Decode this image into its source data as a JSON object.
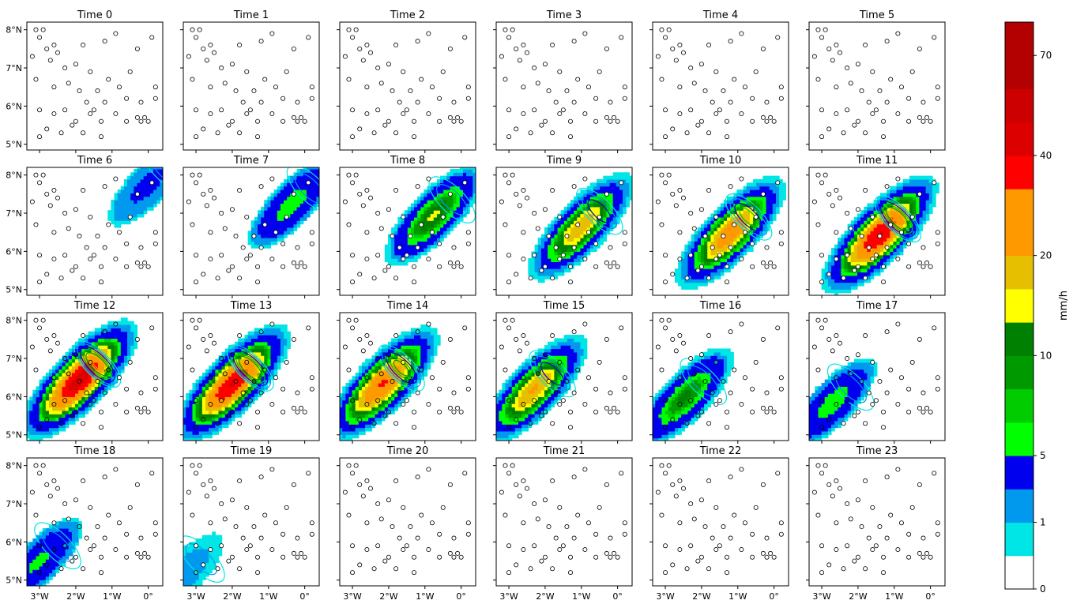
{
  "chart_data": {
    "type": "heatmap",
    "title": "",
    "panel_titles": [
      "Time 0",
      "Time 1",
      "Time 2",
      "Time 3",
      "Time 4",
      "Time 5",
      "Time 6",
      "Time 7",
      "Time 8",
      "Time 9",
      "Time 10",
      "Time 11",
      "Time 12",
      "Time 13",
      "Time 14",
      "Time 15",
      "Time 16",
      "Time 17",
      "Time 18",
      "Time 19",
      "Time 20",
      "Time 21",
      "Time 22",
      "Time 23"
    ],
    "xlim": [
      -3.35,
      0.4
    ],
    "ylim": [
      4.85,
      8.2
    ],
    "x_ticks": [
      {
        "value": -3,
        "label": "3°W"
      },
      {
        "value": -2,
        "label": "2°W"
      },
      {
        "value": -1,
        "label": "1°W"
      },
      {
        "value": 0,
        "label": "0°"
      }
    ],
    "y_ticks": [
      {
        "value": 5,
        "label": "5°N"
      },
      {
        "value": 6,
        "label": "6°N"
      },
      {
        "value": 7,
        "label": "7°N"
      },
      {
        "value": 8,
        "label": "8°N"
      }
    ],
    "colorbar": {
      "label": "mm/h",
      "bounds": [
        0,
        0.5,
        1,
        2,
        5,
        7,
        8,
        10,
        12,
        15,
        20,
        25,
        30,
        40,
        50,
        60,
        70,
        80
      ],
      "tick_labels": [
        {
          "value": 0,
          "label": "0"
        },
        {
          "value": 1,
          "label": "1"
        },
        {
          "value": 5,
          "label": "5"
        },
        {
          "value": 10,
          "label": "10"
        },
        {
          "value": 20,
          "label": "20"
        },
        {
          "value": 40,
          "label": "40"
        },
        {
          "value": 70,
          "label": "70"
        }
      ],
      "colors": [
        "#ffffff",
        "#00e5e5",
        "#0099ee",
        "#0000ee",
        "#00ff00",
        "#00cc00",
        "#009900",
        "#008000",
        "#ffff00",
        "#e6bf00",
        "#ff9900",
        "#ff9900",
        "#ff0000",
        "#dd0000",
        "#cc0000",
        "#b30000",
        "#b30000"
      ]
    },
    "stations": [
      [
        -3.1,
        8.0
      ],
      [
        -2.9,
        8.0
      ],
      [
        -3.0,
        7.8
      ],
      [
        -2.6,
        7.6
      ],
      [
        -2.8,
        7.5
      ],
      [
        -2.7,
        7.2
      ],
      [
        -2.5,
        7.4
      ],
      [
        -1.8,
        7.6
      ],
      [
        -1.2,
        7.7
      ],
      [
        -0.9,
        7.9
      ],
      [
        -0.3,
        7.5
      ],
      [
        0.1,
        7.8
      ],
      [
        -3.2,
        7.3
      ],
      [
        -2.3,
        7.0
      ],
      [
        -2.0,
        7.1
      ],
      [
        -1.6,
        6.9
      ],
      [
        -1.1,
        6.7
      ],
      [
        -0.8,
        6.5
      ],
      [
        -0.5,
        6.9
      ],
      [
        0.2,
        6.5
      ],
      [
        -3.1,
        6.7
      ],
      [
        -2.6,
        6.5
      ],
      [
        -2.2,
        6.6
      ],
      [
        -1.9,
        6.4
      ],
      [
        -1.4,
        6.4
      ],
      [
        -1.7,
        6.1
      ],
      [
        -1.2,
        6.1
      ],
      [
        -0.6,
        6.2
      ],
      [
        -0.2,
        6.1
      ],
      [
        0.2,
        6.2
      ],
      [
        -3.0,
        5.9
      ],
      [
        -2.6,
        5.8
      ],
      [
        -2.3,
        5.9
      ],
      [
        -2.0,
        5.6
      ],
      [
        -1.6,
        5.8
      ],
      [
        -1.3,
        5.6
      ],
      [
        -0.9,
        5.8
      ],
      [
        -0.6,
        5.6
      ],
      [
        -0.3,
        5.7
      ],
      [
        -0.2,
        5.6
      ],
      [
        -0.1,
        5.7
      ],
      [
        0.0,
        5.6
      ],
      [
        -2.8,
        5.4
      ],
      [
        -2.4,
        5.3
      ],
      [
        -1.8,
        5.3
      ],
      [
        -1.3,
        5.2
      ],
      [
        -3.0,
        5.2
      ],
      [
        -2.1,
        5.5
      ],
      [
        -1.5,
        5.9
      ]
    ],
    "storm_centers": [
      null,
      null,
      null,
      null,
      null,
      null,
      [
        -0.05,
        7.7
      ],
      [
        -0.4,
        7.2
      ],
      [
        -0.8,
        6.9
      ],
      [
        -1.05,
        6.6
      ],
      [
        -1.25,
        6.45
      ],
      [
        -1.45,
        6.4
      ],
      [
        -1.95,
        6.4
      ],
      [
        -2.05,
        6.3
      ],
      [
        -2.2,
        6.3
      ],
      [
        -2.35,
        6.15
      ],
      [
        -2.5,
        5.95
      ],
      [
        -2.75,
        5.8
      ],
      [
        -3.05,
        5.45
      ],
      [
        -3.4,
        5.1
      ],
      null,
      null,
      null,
      null
    ],
    "storm_peaks": [
      0,
      0,
      0,
      0,
      0,
      0,
      2,
      6,
      12,
      18,
      25,
      40,
      45,
      40,
      30,
      20,
      10,
      6,
      5,
      1,
      0,
      0,
      0,
      0
    ]
  }
}
